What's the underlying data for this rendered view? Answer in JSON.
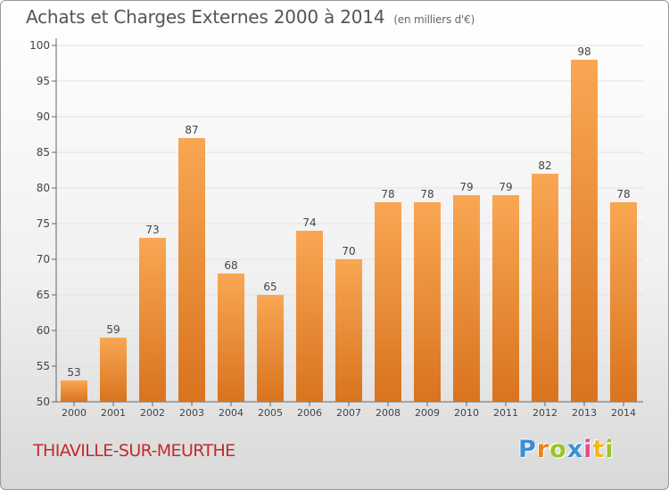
{
  "header": {
    "title": "Achats et Charges Externes 2000 à 2014",
    "unit": "(en milliers d'€)"
  },
  "footer": {
    "town": "THIAVILLE-SUR-MEURTHE",
    "brand": "Proxiti"
  },
  "colors": {
    "bar_top": "#f9a753",
    "bar_bottom": "#d9731e",
    "grid": "#e2e2e2",
    "town": "#c42a2a"
  },
  "chart_data": {
    "type": "bar",
    "title": "Achats et Charges Externes 2000 à 2014",
    "subtitle": "(en milliers d'€)",
    "categories": [
      "2000",
      "2001",
      "2002",
      "2003",
      "2004",
      "2005",
      "2006",
      "2007",
      "2008",
      "2009",
      "2010",
      "2011",
      "2012",
      "2013",
      "2014"
    ],
    "values": [
      53,
      59,
      73,
      87,
      68,
      65,
      74,
      70,
      78,
      78,
      79,
      79,
      82,
      98,
      78
    ],
    "ylim": [
      50,
      100
    ],
    "yticks": [
      50,
      55,
      60,
      65,
      70,
      75,
      80,
      85,
      90,
      95,
      100
    ],
    "grid": true,
    "data_labels": true
  }
}
